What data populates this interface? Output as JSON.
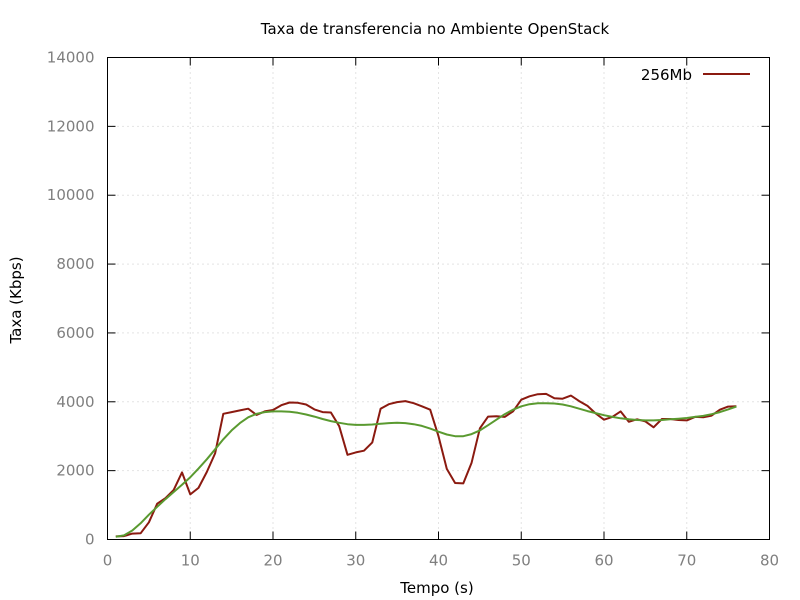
{
  "chart_data": {
    "type": "line",
    "title": "Taxa de transferencia no Ambiente OpenStack",
    "xlabel": "Tempo (s)",
    "ylabel": "Taxa (Kbps)",
    "xlim": [
      0,
      80
    ],
    "ylim": [
      0,
      14000
    ],
    "xticks": [
      "0",
      "10",
      "20",
      "30",
      "40",
      "50",
      "60",
      "70",
      "80"
    ],
    "yticks": [
      "0",
      "2000",
      "4000",
      "6000",
      "8000",
      "10000",
      "12000",
      "14000"
    ],
    "grid": true,
    "legend_position": "top-right",
    "series": [
      {
        "name": "256Mb",
        "color": "#8b1a10",
        "x": [
          1,
          2,
          3,
          4,
          5,
          6,
          7,
          8,
          9,
          10,
          11,
          12,
          13,
          14,
          15,
          16,
          17,
          18,
          19,
          20,
          21,
          22,
          23,
          24,
          25,
          26,
          27,
          28,
          29,
          30,
          31,
          32,
          33,
          34,
          35,
          36,
          37,
          38,
          39,
          40,
          41,
          42,
          43,
          44,
          45,
          46,
          47,
          48,
          49,
          50,
          51,
          52,
          53,
          54,
          55,
          56,
          57,
          58,
          59,
          60,
          61,
          62,
          63,
          64,
          65,
          66,
          67,
          68,
          69,
          70,
          71,
          72,
          73,
          74,
          75,
          76
        ],
        "y": [
          90,
          100,
          170,
          180,
          500,
          1040,
          1200,
          1440,
          1950,
          1310,
          1500,
          1960,
          2500,
          3650,
          3700,
          3750,
          3800,
          3620,
          3720,
          3760,
          3900,
          3980,
          3970,
          3920,
          3780,
          3700,
          3690,
          3290,
          2460,
          2530,
          2580,
          2820,
          3800,
          3930,
          3990,
          4020,
          3960,
          3870,
          3770,
          3000,
          2050,
          1640,
          1630,
          2230,
          3230,
          3570,
          3580,
          3560,
          3720,
          4060,
          4160,
          4220,
          4230,
          4100,
          4090,
          4180,
          4020,
          3880,
          3660,
          3480,
          3560,
          3720,
          3420,
          3490,
          3430,
          3260,
          3500,
          3500,
          3470,
          3460,
          3560,
          3550,
          3600,
          3770,
          3860,
          3870
        ]
      },
      {
        "name": "",
        "color": "#5a9a30",
        "x": [
          1,
          2,
          3,
          4,
          5,
          6,
          7,
          8,
          9,
          10,
          11,
          12,
          13,
          14,
          15,
          16,
          17,
          18,
          19,
          20,
          21,
          22,
          23,
          24,
          25,
          26,
          27,
          28,
          29,
          30,
          31,
          32,
          33,
          34,
          35,
          36,
          37,
          38,
          39,
          40,
          41,
          42,
          43,
          44,
          45,
          46,
          47,
          48,
          49,
          50,
          51,
          52,
          53,
          54,
          55,
          56,
          57,
          58,
          59,
          60,
          61,
          62,
          63,
          64,
          65,
          66,
          67,
          68,
          69,
          70,
          71,
          72,
          73,
          74,
          75,
          76
        ],
        "y": [
          80,
          120,
          260,
          470,
          720,
          950,
          1170,
          1380,
          1590,
          1810,
          2060,
          2330,
          2620,
          2910,
          3170,
          3380,
          3550,
          3650,
          3700,
          3720,
          3720,
          3710,
          3680,
          3630,
          3570,
          3500,
          3440,
          3390,
          3350,
          3330,
          3330,
          3340,
          3360,
          3380,
          3390,
          3380,
          3350,
          3300,
          3220,
          3130,
          3050,
          3000,
          3000,
          3060,
          3170,
          3320,
          3480,
          3640,
          3770,
          3870,
          3930,
          3960,
          3960,
          3950,
          3920,
          3870,
          3800,
          3730,
          3670,
          3610,
          3560,
          3520,
          3490,
          3470,
          3460,
          3460,
          3470,
          3490,
          3510,
          3530,
          3560,
          3590,
          3640,
          3700,
          3780,
          3860
        ]
      }
    ]
  }
}
